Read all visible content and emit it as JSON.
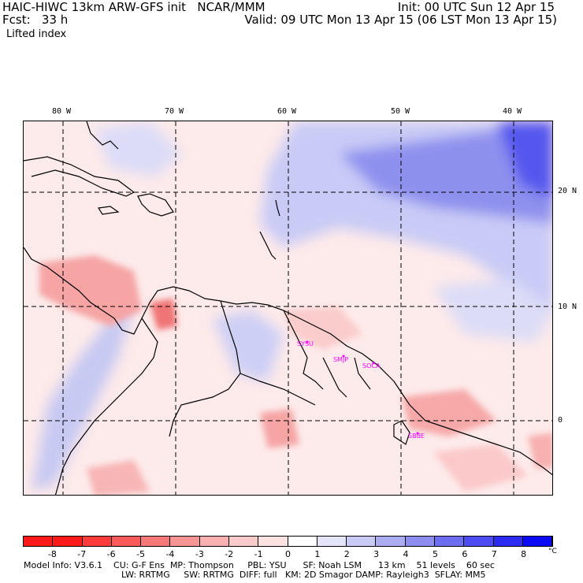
{
  "header": {
    "left1": "HAIC-HIWC 13km ARW-GFS init   NCAR/MMM",
    "left2": "Fcst:   33 h",
    "right1": "Init: 00 UTC Sun 12 Apr 15",
    "right2": "Valid: 09 UTC Mon 13 Apr 15 (06 LST Mon 13 Apr 15)",
    "field": "Lifted index"
  },
  "map": {
    "lon_labels": [
      "80 W",
      "70 W",
      "60 W",
      "50 W",
      "40 W"
    ],
    "lat_labels": [
      "20 N",
      "10 N",
      "0"
    ],
    "stations": [
      "SYSU",
      "SMJP",
      "SOCA",
      "SBBE"
    ],
    "colors": {
      "land_line": "#000000",
      "grid_line": "#000000",
      "station": "#ff00ff"
    }
  },
  "colorbar": {
    "ticks": [
      "-8",
      "-7",
      "-6",
      "-5",
      "-4",
      "-3",
      "-2",
      "-1",
      "0",
      "1",
      "2",
      "3",
      "4",
      "5",
      "6",
      "7",
      "8"
    ],
    "unit": "°C",
    "colors": [
      "#ff1a1a",
      "#ff3c3c",
      "#fb5a5a",
      "#f77878",
      "#f79595",
      "#f9b0b0",
      "#fbcaca",
      "#fde2e2",
      "#ffffff",
      "#e4e4fb",
      "#cacaf7",
      "#acacf2",
      "#8d8df0",
      "#6d6df0",
      "#4c4cf0",
      "#2b2bf2",
      "#0a0af5"
    ]
  },
  "footer": {
    "line1": "Model Info: V3.6.1    CU: G-F Ens  MP: Thompson     PBL: YSU      SF: Noah LSM      13 km    51 levels    60 sec",
    "line2": "LW: RRTMG     SW: RRTMG  DIFF: full   KM: 2D Smagor DAMP: Rayleigh3  SFLAY: MM5"
  }
}
